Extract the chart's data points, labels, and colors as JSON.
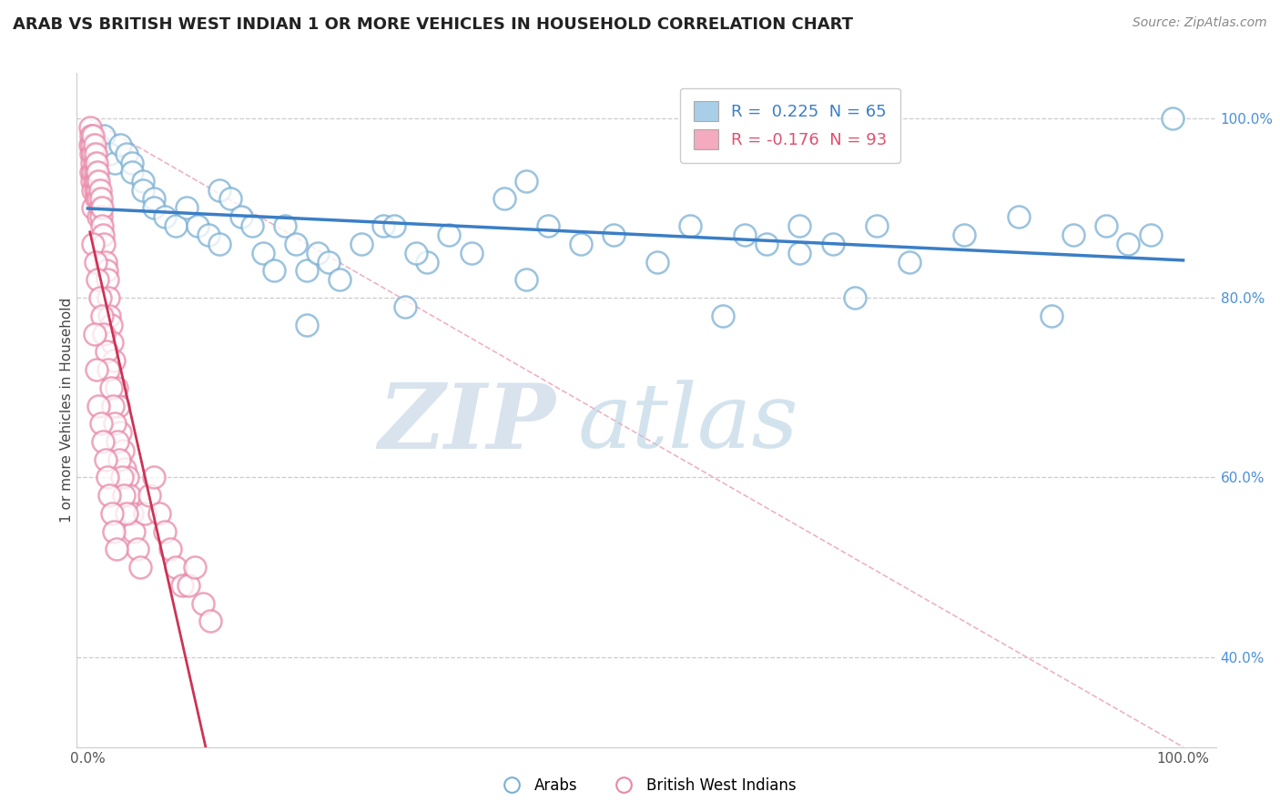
{
  "title": "ARAB VS BRITISH WEST INDIAN 1 OR MORE VEHICLES IN HOUSEHOLD CORRELATION CHART",
  "source_text": "Source: ZipAtlas.com",
  "ylabel": "1 or more Vehicles in Household",
  "xlabel": "",
  "xlim": [
    0,
    1
  ],
  "ylim": [
    0.3,
    1.05
  ],
  "xtick_labels": [
    "0.0%",
    "100.0%"
  ],
  "ytick_labels": [
    "40.0%",
    "60.0%",
    "80.0%",
    "100.0%"
  ],
  "ytick_positions": [
    0.4,
    0.6,
    0.8,
    1.0
  ],
  "watermark_zip": "ZIP",
  "watermark_atlas": "atlas",
  "legend_blue_label": "R =  0.225  N = 65",
  "legend_pink_label": "R = -0.176  N = 93",
  "legend_bottom_blue": "Arabs",
  "legend_bottom_pink": "British West Indians",
  "blue_color": "#A8CEE8",
  "pink_color": "#F4AABF",
  "blue_edge_color": "#7AAFD4",
  "pink_edge_color": "#E888A8",
  "blue_line_color": "#3A7EC6",
  "pink_line_color": "#CC3355",
  "diag_line_color": "#E8A0B8",
  "grid_color": "#CCCCCC",
  "background_color": "#FFFFFF",
  "title_fontsize": 13,
  "blue_x": [
    0.005,
    0.01,
    0.015,
    0.02,
    0.025,
    0.03,
    0.035,
    0.04,
    0.04,
    0.05,
    0.05,
    0.06,
    0.06,
    0.07,
    0.08,
    0.09,
    0.1,
    0.11,
    0.12,
    0.12,
    0.13,
    0.14,
    0.15,
    0.16,
    0.17,
    0.18,
    0.19,
    0.2,
    0.21,
    0.22,
    0.23,
    0.25,
    0.27,
    0.29,
    0.31,
    0.33,
    0.35,
    0.38,
    0.4,
    0.42,
    0.45,
    0.48,
    0.52,
    0.55,
    0.58,
    0.62,
    0.65,
    0.65,
    0.68,
    0.72,
    0.75,
    0.8,
    0.85,
    0.88,
    0.9,
    0.93,
    0.95,
    0.97,
    0.99,
    0.6,
    0.4,
    0.28,
    0.2,
    0.3,
    0.7
  ],
  "blue_y": [
    0.96,
    0.97,
    0.98,
    0.96,
    0.95,
    0.97,
    0.96,
    0.95,
    0.94,
    0.93,
    0.92,
    0.91,
    0.9,
    0.89,
    0.88,
    0.9,
    0.88,
    0.87,
    0.86,
    0.92,
    0.91,
    0.89,
    0.88,
    0.85,
    0.83,
    0.88,
    0.86,
    0.83,
    0.85,
    0.84,
    0.82,
    0.86,
    0.88,
    0.79,
    0.84,
    0.87,
    0.85,
    0.91,
    0.93,
    0.88,
    0.86,
    0.87,
    0.84,
    0.88,
    0.78,
    0.86,
    0.88,
    0.85,
    0.86,
    0.88,
    0.84,
    0.87,
    0.89,
    0.78,
    0.87,
    0.88,
    0.86,
    0.87,
    1.0,
    0.87,
    0.82,
    0.88,
    0.77,
    0.85,
    0.8
  ],
  "pink_x": [
    0.002,
    0.002,
    0.003,
    0.003,
    0.003,
    0.004,
    0.004,
    0.004,
    0.005,
    0.005,
    0.005,
    0.005,
    0.005,
    0.006,
    0.006,
    0.006,
    0.007,
    0.007,
    0.007,
    0.008,
    0.008,
    0.008,
    0.009,
    0.009,
    0.01,
    0.01,
    0.01,
    0.011,
    0.011,
    0.012,
    0.012,
    0.013,
    0.013,
    0.014,
    0.015,
    0.016,
    0.017,
    0.018,
    0.019,
    0.02,
    0.021,
    0.022,
    0.024,
    0.026,
    0.028,
    0.03,
    0.032,
    0.034,
    0.036,
    0.038,
    0.04,
    0.042,
    0.045,
    0.048,
    0.052,
    0.056,
    0.06,
    0.065,
    0.07,
    0.075,
    0.08,
    0.086,
    0.092,
    0.098,
    0.105,
    0.112,
    0.005,
    0.007,
    0.009,
    0.011,
    0.013,
    0.015,
    0.017,
    0.019,
    0.021,
    0.023,
    0.025,
    0.027,
    0.029,
    0.031,
    0.033,
    0.035,
    0.006,
    0.008,
    0.01,
    0.012,
    0.014,
    0.016,
    0.018,
    0.02,
    0.022,
    0.024,
    0.026
  ],
  "pink_y": [
    0.99,
    0.97,
    0.98,
    0.96,
    0.94,
    0.97,
    0.95,
    0.93,
    0.98,
    0.96,
    0.94,
    0.92,
    0.9,
    0.97,
    0.95,
    0.93,
    0.96,
    0.94,
    0.92,
    0.95,
    0.93,
    0.91,
    0.94,
    0.92,
    0.93,
    0.91,
    0.89,
    0.92,
    0.9,
    0.91,
    0.89,
    0.9,
    0.88,
    0.87,
    0.86,
    0.84,
    0.83,
    0.82,
    0.8,
    0.78,
    0.77,
    0.75,
    0.73,
    0.7,
    0.68,
    0.65,
    0.63,
    0.61,
    0.6,
    0.58,
    0.56,
    0.54,
    0.52,
    0.5,
    0.56,
    0.58,
    0.6,
    0.56,
    0.54,
    0.52,
    0.5,
    0.48,
    0.48,
    0.5,
    0.46,
    0.44,
    0.86,
    0.84,
    0.82,
    0.8,
    0.78,
    0.76,
    0.74,
    0.72,
    0.7,
    0.68,
    0.66,
    0.64,
    0.62,
    0.6,
    0.58,
    0.56,
    0.76,
    0.72,
    0.68,
    0.66,
    0.64,
    0.62,
    0.6,
    0.58,
    0.56,
    0.54,
    0.52
  ]
}
